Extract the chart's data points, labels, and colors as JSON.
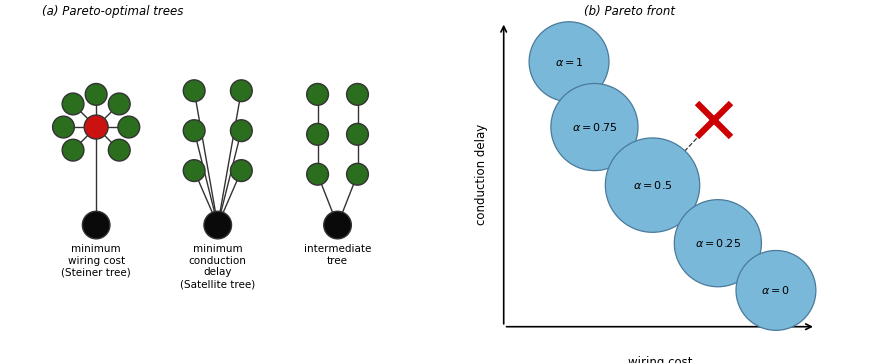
{
  "fig_width": 8.71,
  "fig_height": 3.63,
  "panel_a_title": "(a) Pareto-optimal trees",
  "panel_b_title": "(b) Pareto front",
  "green_color": "#2a6e1e",
  "red_color": "#cc1111",
  "black_color": "#0a0a0a",
  "blue_color": "#7ab8d9",
  "blue_edge": "#4a7a9b",
  "labels": [
    "minimum\nwiring cost\n(Steiner tree)",
    "minimum\nconduction\ndelay\n(Satellite tree)",
    "intermediate\ntree"
  ],
  "xlabel": "wiring cost",
  "ylabel": "conduction delay"
}
